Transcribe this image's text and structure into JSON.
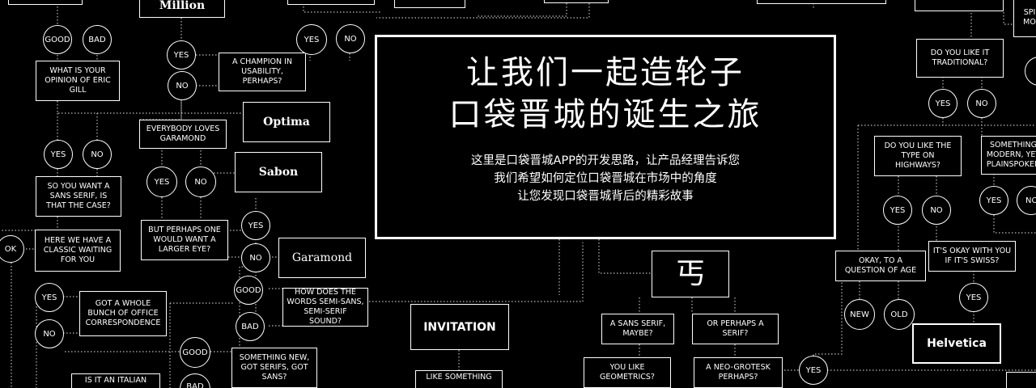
{
  "hero": {
    "title_line1": "让我们一起造轮子",
    "title_line2": "口袋晋城的诞生之旅",
    "desc_line1": "这里是口袋晋城APP的开发思路，让产品经理告诉您",
    "desc_line2": "我们希望如何定位口袋晋城在市场中的角度",
    "desc_line3": "让您发现口袋晋城背后的精彩故事"
  },
  "nodes": {
    "million": "Million",
    "what_opinion_gill": "WHAT IS YOUR OPINION OF ERIC GILL",
    "champion_usability": "A CHAMPION IN USABILITY, PERHAPS?",
    "optima": "Optima",
    "everybody_garamond": "EVERYBODY LOVES GARAMOND",
    "sabon": "Sabon",
    "sans_serif_case": "SO YOU WANT A SANS SERIF, IS THAT THE CASE?",
    "larger_eye": "BUT PERHAPS ONE WOULD WANT A LARGER EYE?",
    "garamond": "Garamond",
    "classic_waiting": "HERE WE HAVE A CLASSIC WAITING FOR YOU",
    "office_correspondence": "GOT A WHOLE BUNCH OF OFFICE CORRESPONDENCE",
    "semi_sans": "HOW DOES THE WORDS SEMI-SANS, SEMI-SERIF SOUND?",
    "something_new": "SOMETHING NEW, GOT SERIFS, GOT SANS?",
    "is_it_italian": "IS IT AN ITALIAN",
    "invitation": "INVITATION",
    "like_something": "LIKE SOMETHING",
    "logo_glyph": "丐",
    "sans_maybe": "A SANS SERIF, MAYBE?",
    "serif_perhaps": "OR PERHAPS A SERIF?",
    "geometrics": "YOU LIKE GEOMETRICS?",
    "neo_grotesk": "A NEO-GROTESK PERHAPS?",
    "like_traditional": "DO YOU LIKE IT TRADITIONAL?",
    "type_highways": "DO YOU LIKE THE TYPE ON HIGHWAYS?",
    "modern_plainspoken": "SOMETHING MODERN, YET PLAINSPOKEN",
    "swiss": "IT'S OKAY WITH YOU IF IT'S SWISS?",
    "question_age": "OKAY, TO A QUESTION OF AGE",
    "helvetica": "Helvetica",
    "spi_mo": "SPI MO"
  },
  "answers": {
    "yes": "YES",
    "no": "NO",
    "good": "GOOD",
    "bad": "BAD",
    "ok": "OK",
    "new": "NEW",
    "old": "OLD"
  }
}
